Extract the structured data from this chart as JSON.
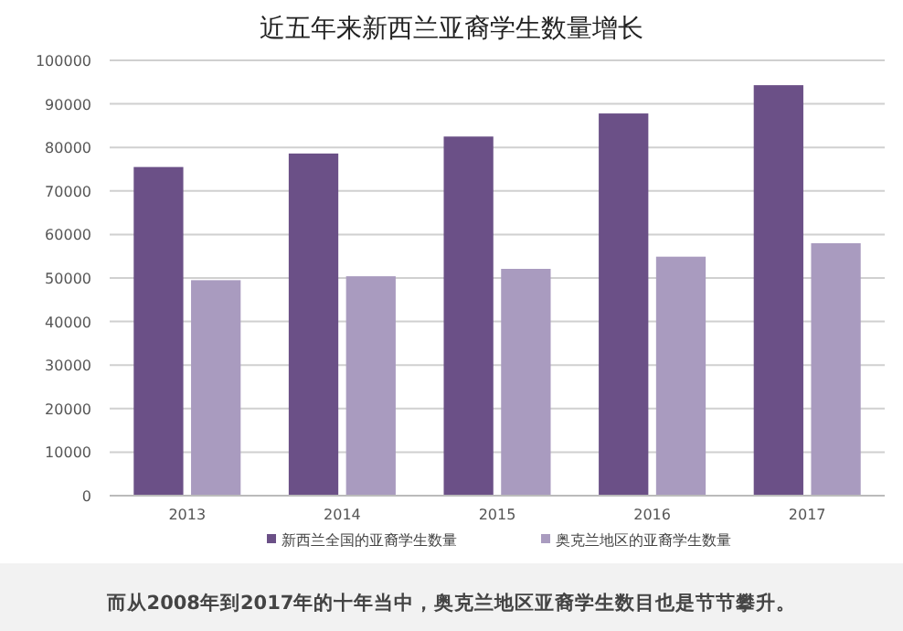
{
  "chart_data": {
    "type": "bar",
    "title": "近五年来新西兰亚裔学生数量增长",
    "categories": [
      "2013",
      "2014",
      "2015",
      "2016",
      "2017"
    ],
    "series": [
      {
        "name": "新西兰全国的亚裔学生数量",
        "color": "#6b5087",
        "values": [
          75500,
          78600,
          82500,
          87800,
          94300
        ]
      },
      {
        "name": "奥克兰地区的亚裔学生数量",
        "color": "#a99bbf",
        "values": [
          49500,
          50400,
          52100,
          54900,
          58000
        ]
      }
    ],
    "ylim": [
      0,
      100000
    ],
    "yticks": [
      0,
      10000,
      20000,
      30000,
      40000,
      50000,
      60000,
      70000,
      80000,
      90000,
      100000
    ],
    "grid": "y",
    "legend": "bottom",
    "annotations": [
      "而从2008年到2017年的十年当中，奥克兰地区亚裔学生数目也是节节攀升。"
    ]
  }
}
